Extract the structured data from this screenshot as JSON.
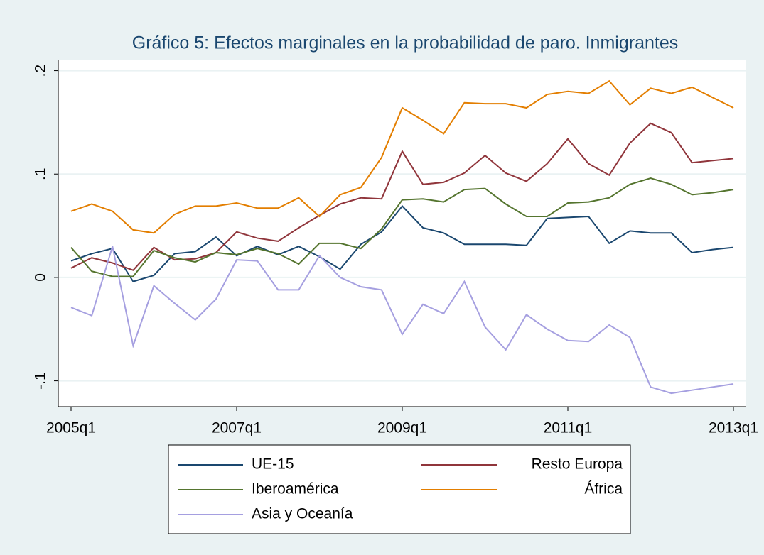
{
  "chart_data": {
    "type": "line",
    "title": "Gráfico 5: Efectos marginales en la probabilidad de paro. Inmigrantes",
    "categories": [
      "2005q1",
      null,
      null,
      null,
      null,
      null,
      null,
      null,
      "2007q1",
      null,
      null,
      null,
      null,
      null,
      null,
      null,
      "2009q1",
      null,
      null,
      null,
      null,
      null,
      null,
      null,
      "2011q1",
      null,
      null,
      null,
      null,
      null,
      null,
      null,
      "2013q1"
    ],
    "series": [
      {
        "name": "UE-15",
        "color": "#1a476f",
        "values": [
          0.016,
          0.023,
          0.028,
          -0.004,
          0.002,
          0.023,
          0.025,
          0.039,
          0.021,
          0.03,
          0.022,
          0.03,
          0.02,
          0.008,
          0.032,
          0.044,
          0.069,
          0.048,
          0.043,
          0.032,
          0.032,
          0.032,
          0.031,
          0.057,
          0.058,
          0.059,
          0.033,
          0.045,
          0.043,
          0.043,
          0.024,
          0.027,
          0.029
        ]
      },
      {
        "name": "Resto Europa",
        "color": "#90353b",
        "values": [
          0.009,
          0.019,
          0.014,
          0.007,
          0.029,
          0.017,
          0.018,
          0.024,
          0.044,
          0.038,
          0.035,
          0.048,
          0.06,
          0.071,
          0.077,
          0.076,
          0.122,
          0.09,
          0.092,
          0.101,
          0.118,
          0.101,
          0.093,
          0.11,
          0.134,
          0.11,
          0.099,
          0.13,
          0.149,
          0.14,
          0.111,
          0.113,
          0.115
        ]
      },
      {
        "name": "Iberoamérica",
        "color": "#55752f",
        "values": [
          0.029,
          0.006,
          0.001,
          0.001,
          0.026,
          0.019,
          0.015,
          0.024,
          0.022,
          0.028,
          0.023,
          0.013,
          0.033,
          0.033,
          0.028,
          0.047,
          0.075,
          0.076,
          0.073,
          0.085,
          0.086,
          0.071,
          0.059,
          0.059,
          0.072,
          0.073,
          0.077,
          0.09,
          0.096,
          0.09,
          0.08,
          0.082,
          0.085
        ]
      },
      {
        "name": "África",
        "color": "#e37e00",
        "values": [
          0.064,
          0.071,
          0.064,
          0.046,
          0.043,
          0.061,
          0.069,
          0.069,
          0.072,
          0.067,
          0.067,
          0.077,
          0.059,
          0.08,
          0.087,
          0.116,
          0.164,
          0.152,
          0.139,
          0.169,
          0.168,
          0.168,
          0.164,
          0.177,
          0.18,
          0.178,
          0.19,
          0.167,
          0.183,
          0.178,
          0.184,
          0.174,
          0.164
        ]
      },
      {
        "name": "Asia y Oceanía",
        "color": "#a59fe0",
        "values": [
          -0.029,
          -0.037,
          0.03,
          -0.066,
          -0.008,
          -0.025,
          -0.041,
          -0.021,
          0.017,
          0.016,
          -0.012,
          -0.012,
          0.021,
          0.0,
          -0.009,
          -0.012,
          -0.055,
          -0.026,
          -0.035,
          -0.004,
          -0.048,
          -0.07,
          -0.036,
          -0.05,
          -0.061,
          -0.062,
          -0.046,
          -0.058,
          -0.106,
          -0.112,
          -0.109,
          -0.106,
          -0.103
        ]
      }
    ],
    "ylim": [
      -0.125,
      0.21
    ],
    "yticks": [
      {
        "value": -0.1,
        "label": "-.1"
      },
      0,
      {
        "value": 0.1,
        "label": ".1"
      },
      {
        "value": 0.2,
        "label": ".2"
      }
    ],
    "grid": true,
    "legend": "bottom"
  }
}
